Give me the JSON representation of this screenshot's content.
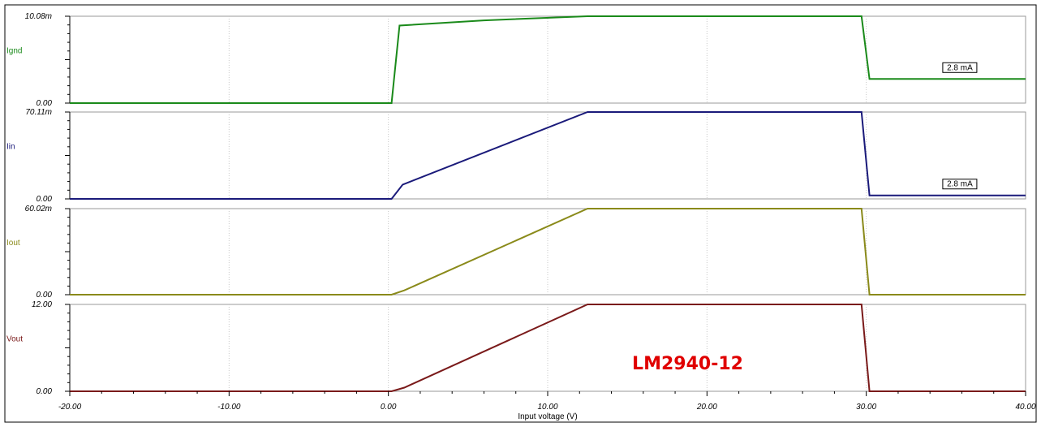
{
  "chart_data": {
    "type": "line",
    "xlabel": "Input voltage (V)",
    "x_ticks": [
      "-20.00",
      "-10.00",
      "0.00",
      "10.00",
      "20.00",
      "30.00",
      "40.00"
    ],
    "xlim": [
      -20,
      40
    ],
    "grid": true,
    "annotation_text": "LM2940-12",
    "annotation_color": "#e00000",
    "panels": [
      {
        "name": "Ignd",
        "color": "#1a8a1a",
        "unit": "mA",
        "ylim": [
          0,
          10.08
        ],
        "ymax_label": "10.08m",
        "ymin_label": "0.00",
        "x": [
          -20,
          0.2,
          0.7,
          6,
          12.5,
          20,
          29.7,
          30.2,
          40
        ],
        "y": [
          0,
          0,
          9.0,
          9.6,
          10.08,
          10.08,
          10.08,
          2.8,
          2.8
        ],
        "marker_label": "2.8 mA"
      },
      {
        "name": "Iin",
        "color": "#1a1a7a",
        "unit": "mA",
        "ylim": [
          0,
          70.11
        ],
        "ymax_label": "70.11m",
        "ymin_label": "0.00",
        "x": [
          -20,
          0.2,
          0.9,
          12.5,
          20,
          29.7,
          30.2,
          40
        ],
        "y": [
          0,
          0,
          11.5,
          70.11,
          70.11,
          70.11,
          2.8,
          2.8
        ],
        "marker_label": "2.8 mA"
      },
      {
        "name": "Iout",
        "color": "#8a8a1a",
        "unit": "mA",
        "ylim": [
          0,
          60.02
        ],
        "ymax_label": "60.02m",
        "ymin_label": "0.00",
        "x": [
          -20,
          0.2,
          1.0,
          12.5,
          20,
          29.7,
          30.2,
          40
        ],
        "y": [
          0,
          0,
          3.0,
          60.02,
          60.02,
          60.02,
          0,
          0
        ]
      },
      {
        "name": "Vout",
        "color": "#7a1a1a",
        "unit": "V",
        "ylim": [
          0,
          12.0
        ],
        "ymax_label": "12.00",
        "ymin_label": "0.00",
        "x": [
          -20,
          0.2,
          1.0,
          12.5,
          20,
          29.7,
          30.2,
          40
        ],
        "y": [
          0,
          0,
          0.5,
          12.0,
          12.0,
          12.0,
          0,
          0
        ]
      }
    ]
  }
}
